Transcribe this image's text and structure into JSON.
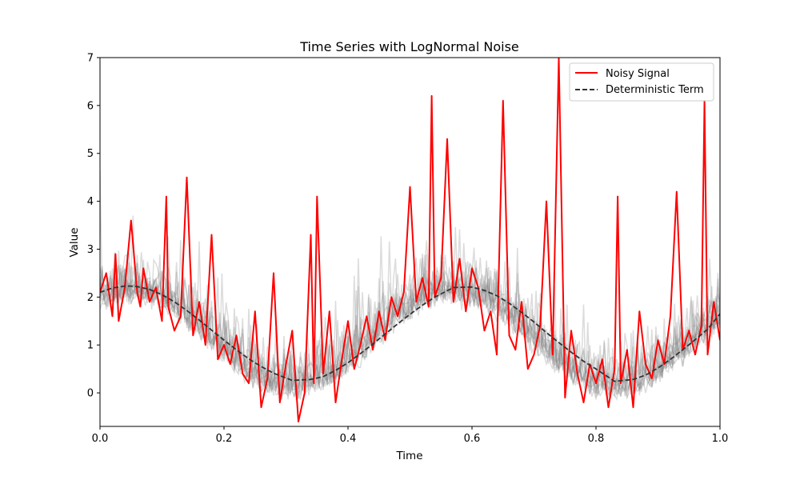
{
  "chart_data": {
    "type": "line",
    "title": "Time Series with LogNormal Noise",
    "xlabel": "Time",
    "ylabel": "Value",
    "xlim": [
      0,
      1
    ],
    "ylim": [
      -0.7,
      7
    ],
    "xticks": [
      0.0,
      0.2,
      0.4,
      0.6,
      0.8,
      1.0
    ],
    "xtick_labels": [
      "0.0",
      "0.2",
      "0.4",
      "0.6",
      "0.8",
      "1.0"
    ],
    "yticks": [
      0,
      1,
      2,
      3,
      4,
      5,
      6,
      7
    ],
    "ytick_labels": [
      "0",
      "1",
      "2",
      "3",
      "4",
      "5",
      "6",
      "7"
    ],
    "grid": false,
    "legend_position": "top-right",
    "deterministic": {
      "type": "sinusoid",
      "offset": 1.23,
      "amplitude": 1.0,
      "period": 0.52,
      "peak_x": 0.05
    },
    "background_realizations": {
      "count": 12,
      "color": "#808080",
      "opacity": 0.28
    },
    "series": [
      {
        "name": "Noisy Signal",
        "color": "#ff0000",
        "style": "solid",
        "x": [
          0.0,
          0.01,
          0.02,
          0.025,
          0.03,
          0.04,
          0.05,
          0.06,
          0.065,
          0.07,
          0.08,
          0.09,
          0.1,
          0.107,
          0.11,
          0.12,
          0.13,
          0.14,
          0.15,
          0.16,
          0.17,
          0.18,
          0.19,
          0.2,
          0.21,
          0.22,
          0.23,
          0.24,
          0.25,
          0.26,
          0.27,
          0.28,
          0.29,
          0.3,
          0.31,
          0.32,
          0.33,
          0.34,
          0.345,
          0.35,
          0.36,
          0.37,
          0.38,
          0.39,
          0.4,
          0.41,
          0.42,
          0.43,
          0.44,
          0.45,
          0.46,
          0.47,
          0.48,
          0.49,
          0.5,
          0.51,
          0.52,
          0.53,
          0.535,
          0.54,
          0.55,
          0.56,
          0.57,
          0.58,
          0.59,
          0.6,
          0.61,
          0.62,
          0.63,
          0.64,
          0.65,
          0.66,
          0.67,
          0.68,
          0.69,
          0.7,
          0.71,
          0.72,
          0.73,
          0.74,
          0.75,
          0.76,
          0.77,
          0.78,
          0.79,
          0.8,
          0.81,
          0.82,
          0.83,
          0.835,
          0.84,
          0.85,
          0.86,
          0.87,
          0.88,
          0.89,
          0.9,
          0.91,
          0.92,
          0.93,
          0.94,
          0.95,
          0.96,
          0.97,
          0.975,
          0.98,
          0.99,
          1.0
        ],
        "y": [
          2.1,
          2.5,
          1.6,
          2.9,
          1.5,
          2.2,
          3.6,
          2.1,
          1.8,
          2.6,
          1.9,
          2.2,
          1.5,
          4.1,
          1.8,
          1.3,
          1.6,
          4.5,
          1.2,
          1.9,
          1.0,
          3.3,
          0.7,
          1.0,
          0.6,
          1.2,
          0.4,
          0.2,
          1.7,
          -0.3,
          0.3,
          2.5,
          -0.2,
          0.6,
          1.3,
          -0.6,
          0.0,
          3.3,
          0.2,
          4.1,
          0.4,
          1.7,
          -0.2,
          0.7,
          1.5,
          0.5,
          1.0,
          1.6,
          0.9,
          1.7,
          1.1,
          2.0,
          1.6,
          2.1,
          4.3,
          1.9,
          2.4,
          1.8,
          6.2,
          2.0,
          2.4,
          5.3,
          1.9,
          2.8,
          1.7,
          2.6,
          2.2,
          1.3,
          1.7,
          0.8,
          6.1,
          1.2,
          0.9,
          1.9,
          0.5,
          0.8,
          1.4,
          4.0,
          0.8,
          7.0,
          -0.1,
          1.3,
          0.4,
          -0.2,
          0.6,
          0.2,
          0.7,
          -0.3,
          0.5,
          4.1,
          0.2,
          0.9,
          -0.3,
          1.7,
          0.6,
          0.3,
          1.1,
          0.6,
          1.6,
          4.2,
          0.9,
          1.3,
          0.8,
          1.4,
          6.1,
          0.8,
          1.9,
          1.1
        ]
      },
      {
        "name": "Deterministic Term",
        "color": "#333333",
        "style": "dashed",
        "x": [
          0.0,
          0.02,
          0.04,
          0.05,
          0.06,
          0.08,
          0.1,
          0.12,
          0.14,
          0.16,
          0.18,
          0.2,
          0.22,
          0.24,
          0.26,
          0.28,
          0.31,
          0.34,
          0.36,
          0.38,
          0.4,
          0.42,
          0.44,
          0.46,
          0.48,
          0.5,
          0.52,
          0.54,
          0.57,
          0.6,
          0.62,
          0.64,
          0.66,
          0.68,
          0.7,
          0.72,
          0.74,
          0.76,
          0.78,
          0.8,
          0.83,
          0.86,
          0.88,
          0.9,
          0.92,
          0.94,
          0.96,
          0.98,
          1.0
        ],
        "y": [
          2.1,
          2.19,
          2.23,
          2.23,
          2.22,
          2.16,
          2.05,
          1.9,
          1.72,
          1.52,
          1.31,
          1.1,
          0.9,
          0.71,
          0.55,
          0.41,
          0.26,
          0.28,
          0.34,
          0.47,
          0.63,
          0.82,
          1.02,
          1.23,
          1.44,
          1.64,
          1.83,
          2.0,
          2.2,
          2.21,
          2.14,
          2.03,
          1.87,
          1.68,
          1.48,
          1.26,
          1.05,
          0.85,
          0.66,
          0.5,
          0.24,
          0.28,
          0.37,
          0.52,
          0.7,
          0.9,
          1.11,
          1.33,
          1.65
        ]
      }
    ]
  }
}
